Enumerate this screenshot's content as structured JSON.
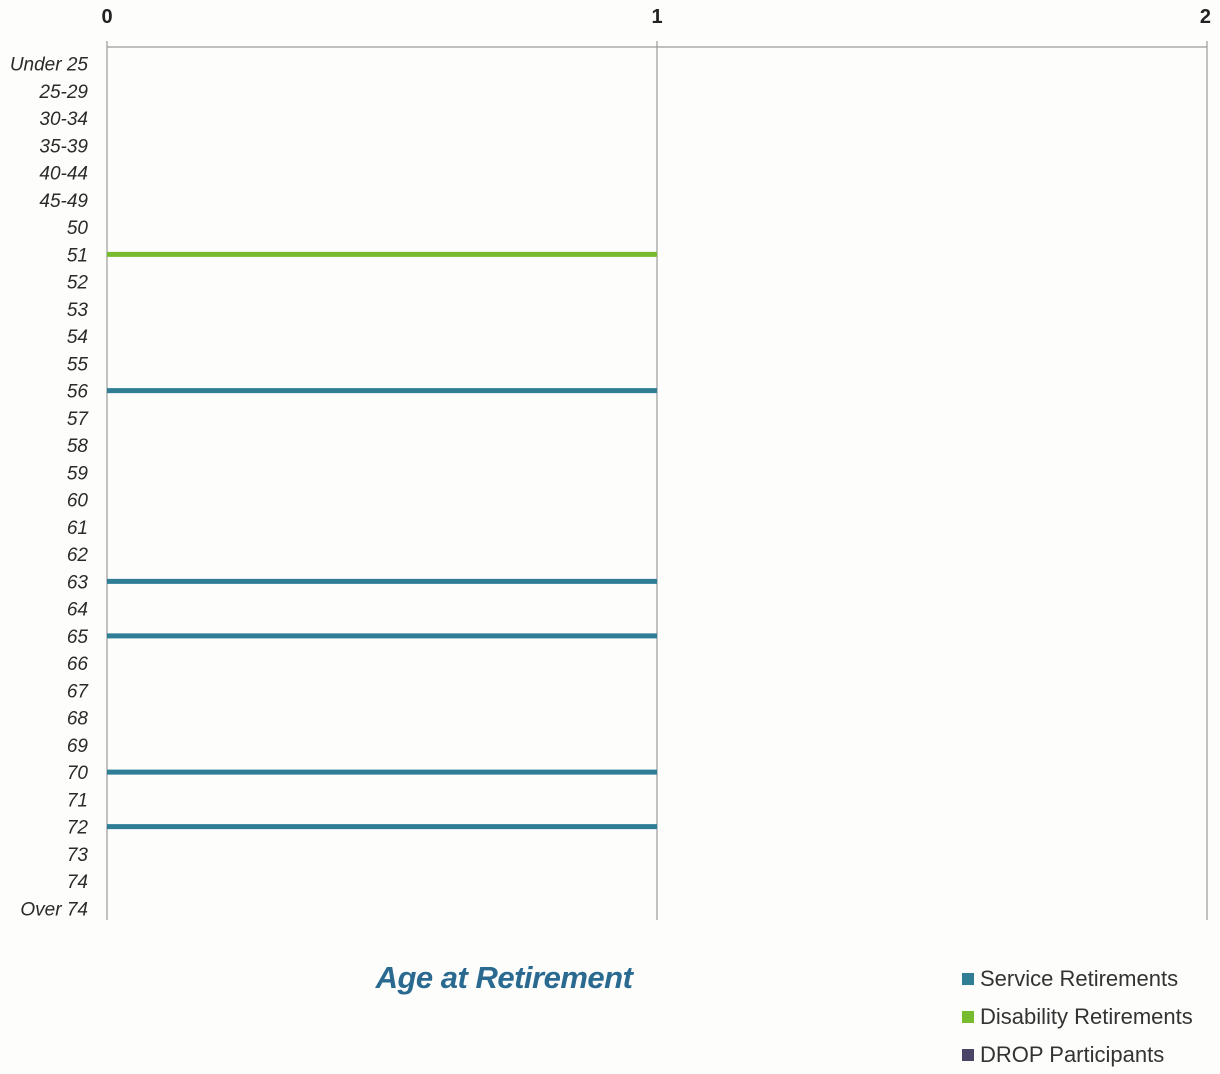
{
  "chart_data": {
    "type": "bar",
    "orientation": "horizontal",
    "title": "Age at Retirement",
    "categories": [
      "Under 25",
      "25-29",
      "30-34",
      "35-39",
      "40-44",
      "45-49",
      "50",
      "51",
      "52",
      "53",
      "54",
      "55",
      "56",
      "57",
      "58",
      "59",
      "60",
      "61",
      "62",
      "63",
      "64",
      "65",
      "66",
      "67",
      "68",
      "69",
      "70",
      "71",
      "72",
      "73",
      "74",
      "Over 74"
    ],
    "x_ticks": [
      "0",
      "1",
      "2"
    ],
    "xlim": [
      0,
      2
    ],
    "x_axis_position": "top",
    "grid": true,
    "legend_position": "bottom-right",
    "series": [
      {
        "name": "Service Retirements",
        "color": "#2f7e96",
        "values": [
          0,
          0,
          0,
          0,
          0,
          0,
          0,
          0,
          0,
          0,
          0,
          0,
          1,
          0,
          0,
          0,
          0,
          0,
          0,
          1,
          0,
          1,
          0,
          0,
          0,
          0,
          1,
          0,
          1,
          0,
          0,
          0
        ]
      },
      {
        "name": "Disability Retirements",
        "color": "#76bc2e",
        "values": [
          0,
          0,
          0,
          0,
          0,
          0,
          0,
          1,
          0,
          0,
          0,
          0,
          0,
          0,
          0,
          0,
          0,
          0,
          0,
          0,
          0,
          0,
          0,
          0,
          0,
          0,
          0,
          0,
          0,
          0,
          0,
          0
        ]
      },
      {
        "name": "DROP Participants",
        "color": "#4a4566",
        "values": [
          0,
          0,
          0,
          0,
          0,
          0,
          0,
          0,
          0,
          0,
          0,
          0,
          0,
          0,
          0,
          0,
          0,
          0,
          0,
          0,
          0,
          0,
          0,
          0,
          0,
          0,
          0,
          0,
          0,
          0,
          0,
          0
        ]
      }
    ]
  }
}
